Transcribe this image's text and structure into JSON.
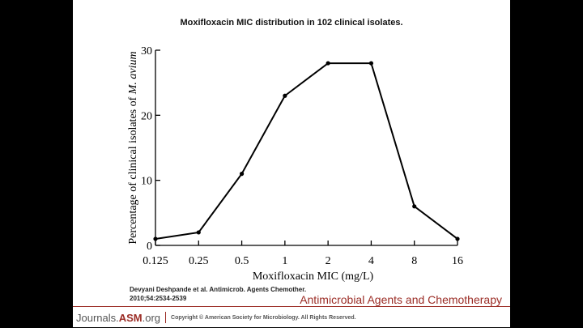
{
  "chart_data": {
    "type": "line",
    "title": "Moxifloxacin MIC distribution in 102 clinical isolates.",
    "xlabel": "Moxifloxacin MIC  (mg/L)",
    "ylabel_prefix": "Percentage of clinical isolates of",
    "ylabel_italic": "M. avium",
    "categories": [
      "0.125",
      "0.25",
      "0.5",
      "1",
      "2",
      "4",
      "8",
      "16"
    ],
    "values": [
      1,
      2,
      11,
      23,
      28,
      28,
      6,
      1
    ],
    "yticks": [
      "0",
      "10",
      "20",
      "30"
    ],
    "ylim": [
      0,
      30
    ]
  },
  "citation": {
    "line1": "Devyani Deshpande et al. Antimicrob. Agents Chemother.",
    "line2": "2010;54:2534-2539"
  },
  "journal_name": "Antimicrobial Agents and Chemotherapy",
  "footer": {
    "logo_prefix": "Journals.",
    "logo_brand": "ASM",
    "logo_suffix": ".org",
    "copyright": "Copyright © American Society for Microbiology. All Rights Reserved."
  }
}
